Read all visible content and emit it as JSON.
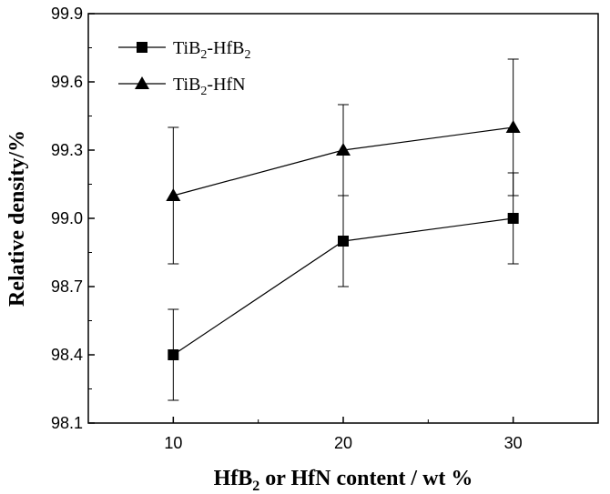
{
  "chart_data": {
    "type": "line",
    "title": "",
    "xlabel": {
      "main": "HfB",
      "sub": "2",
      "rest": " or HfN content / wt %"
    },
    "ylabel": "Relative density/%",
    "x": [
      10,
      20,
      30
    ],
    "xlim": [
      5,
      35
    ],
    "ylim": [
      98.1,
      99.9
    ],
    "x_ticks": [
      "10",
      "20",
      "30"
    ],
    "y_ticks": [
      "98.1",
      "98.4",
      "98.7",
      "99.0",
      "99.3",
      "99.6",
      "99.9"
    ],
    "grid": false,
    "legend_position": "top-left",
    "series": [
      {
        "name": "TiB2-HfB2",
        "legend": [
          {
            "t": "TiB",
            "s": false
          },
          {
            "t": "2",
            "s": true
          },
          {
            "t": "-HfB",
            "s": false
          },
          {
            "t": "2",
            "s": true
          }
        ],
        "marker": "square",
        "values": [
          98.4,
          98.9,
          99.0
        ],
        "err_low": [
          98.2,
          98.7,
          98.8
        ],
        "err_high": [
          98.6,
          99.1,
          99.2
        ],
        "color": "#000000"
      },
      {
        "name": "TiB2-HfN",
        "legend": [
          {
            "t": "TiB",
            "s": false
          },
          {
            "t": "2",
            "s": true
          },
          {
            "t": "-HfN",
            "s": false
          }
        ],
        "marker": "triangle",
        "values": [
          99.1,
          99.3,
          99.4
        ],
        "err_low": [
          98.8,
          99.1,
          99.1
        ],
        "err_high": [
          99.4,
          99.5,
          99.7
        ],
        "color": "#000000"
      }
    ]
  }
}
